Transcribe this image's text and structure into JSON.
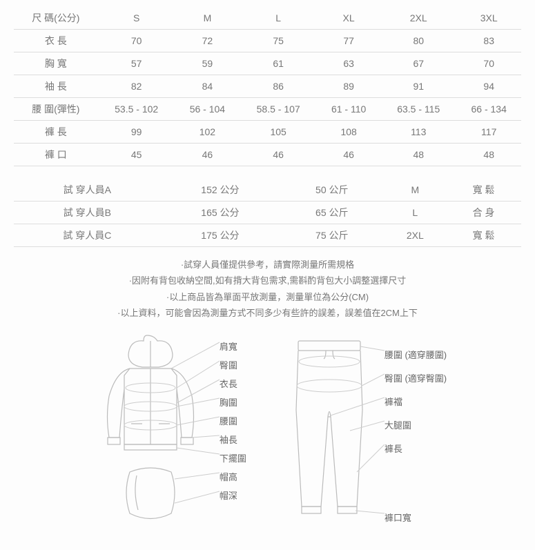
{
  "size_chart": {
    "header": [
      "尺 碼(公分)",
      "S",
      "M",
      "L",
      "XL",
      "2XL",
      "3XL"
    ],
    "rows": [
      [
        "衣 長",
        "70",
        "72",
        "75",
        "77",
        "80",
        "83"
      ],
      [
        "胸 寬",
        "57",
        "59",
        "61",
        "63",
        "67",
        "70"
      ],
      [
        "袖 長",
        "82",
        "84",
        "86",
        "89",
        "91",
        "94"
      ],
      [
        "腰 圍(彈性)",
        "53.5 - 102",
        "56 - 104",
        "58.5 - 107",
        "61 - 110",
        "63.5 - 115",
        "66 - 134"
      ],
      [
        "褲 長",
        "99",
        "102",
        "105",
        "108",
        "113",
        "117"
      ],
      [
        "褲 口",
        "45",
        "46",
        "46",
        "46",
        "48",
        "48"
      ]
    ]
  },
  "fit_table": {
    "rows": [
      [
        "試 穿人員A",
        "152 公分",
        "50 公斤",
        "M",
        "寬 鬆"
      ],
      [
        "試 穿人員B",
        "165 公分",
        "65 公斤",
        "L",
        "合 身"
      ],
      [
        "試 穿人員C",
        "175 公分",
        "75 公斤",
        "2XL",
        "寬 鬆"
      ]
    ]
  },
  "notes": [
    "·試穿人員僅提供參考，請實際測量所需規格",
    "·因附有背包收納空間,如有揹大背包需求,需斟酌背包大小調整選擇尺寸",
    "·以上商品皆為單面平放測量，測量單位為公分(CM)",
    "·以上資料，可能會因為測量方式不同多少有些許的誤差，誤差值在2CM上下"
  ],
  "diagram_labels": {
    "jacket": [
      "肩寬",
      "臀圍",
      "衣長",
      "胸圍",
      "腰圍",
      "袖長",
      "下擺圍",
      "帽高",
      "帽深"
    ],
    "pants": [
      "腰圍 (適穿腰圍)",
      "臀圍 (適穿臀圍)",
      "褲襠",
      "大腿圍",
      "褲長",
      "褲口寬"
    ]
  },
  "colors": {
    "text": "#777777",
    "border": "#dddddd",
    "stroke": "#bbbbbb",
    "guide": "#cccccc",
    "bg": "#fdfdfd"
  }
}
